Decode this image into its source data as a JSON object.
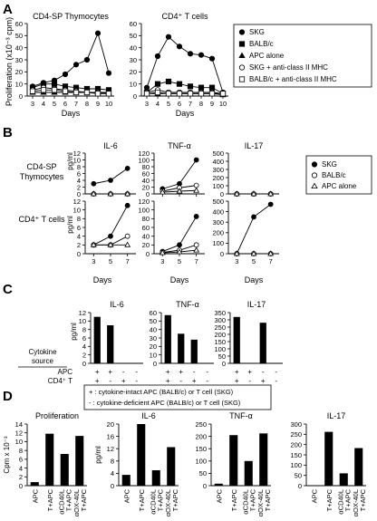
{
  "panels": {
    "A": {
      "label": "A",
      "ylabel": "Proliferation (x10⁻³ cpm)",
      "xlabel": "Days",
      "legend": [
        "SKG",
        "BALB/c",
        "APC alone",
        "SKG + anti-class II MHC",
        "BALB/c + anti-class II MHC"
      ]
    },
    "B": {
      "label": "B",
      "row_labels": [
        [
          "CD4-SP",
          "Thymocytes"
        ],
        [
          "CD4⁺ T cells"
        ]
      ],
      "ylabel": "pg/ml",
      "xlabel": "Days",
      "legend": [
        "SKG",
        "BALB/c",
        "APC alone"
      ]
    },
    "C": {
      "label": "C",
      "ylabel": "pg/ml",
      "source_label": [
        "Cytokine",
        "source"
      ],
      "row_apc": "APC",
      "row_t": "CD4⁺ T",
      "rows": {
        "apc": [
          "+",
          "+",
          "-",
          "-"
        ],
        "t": [
          "+",
          "-",
          "+",
          "-"
        ]
      },
      "footnote": [
        "+ : cytokine-intact APC (BALB/c) or T cell (SKG)",
        "- : cytokine-deficient APC (BALB/c) or T cell (SKG)"
      ]
    },
    "D": {
      "label": "D"
    }
  },
  "chart_data": [
    {
      "id": "A1",
      "type": "line",
      "panel": "A",
      "title": "CD4-SP Thymocytes",
      "xlabel": "Days",
      "ylabel": "Proliferation (x10⁻³ cpm)",
      "x": [
        3,
        4,
        5,
        6,
        7,
        8,
        9,
        10
      ],
      "xlim": [
        2.5,
        10.5
      ],
      "ylim": [
        0,
        60
      ],
      "yticks": [
        0,
        10,
        20,
        30,
        40,
        50,
        60
      ],
      "series": [
        {
          "name": "SKG",
          "marker": "filled-circle",
          "values": [
            8,
            11,
            13,
            18,
            26,
            30,
            52,
            19
          ]
        },
        {
          "name": "BALB/c",
          "marker": "filled-square",
          "values": [
            7,
            10,
            10,
            8,
            7,
            6,
            6,
            5
          ]
        },
        {
          "name": "APC alone",
          "marker": "filled-triangle",
          "values": [
            3,
            3,
            3,
            3,
            3,
            3,
            3,
            3
          ]
        },
        {
          "name": "SKG + anti-class II MHC",
          "marker": "open-circle",
          "values": [
            5,
            7,
            6,
            5,
            4,
            3,
            3,
            2
          ]
        },
        {
          "name": "BALB/c + anti-class II MHC",
          "marker": "open-square",
          "values": [
            4,
            5,
            5,
            4,
            3,
            3,
            2,
            2
          ]
        }
      ]
    },
    {
      "id": "A2",
      "type": "line",
      "panel": "A",
      "title": "CD4⁺ T cells",
      "xlabel": "Days",
      "x": [
        3,
        4,
        5,
        6,
        7,
        8,
        9,
        10
      ],
      "xlim": [
        2.5,
        10.5
      ],
      "ylim": [
        0,
        60
      ],
      "yticks": [
        0,
        10,
        20,
        30,
        40,
        50,
        60
      ],
      "series": [
        {
          "name": "SKG",
          "marker": "filled-circle",
          "values": [
            7,
            33,
            49,
            41,
            35,
            34,
            31,
            3
          ]
        },
        {
          "name": "BALB/c",
          "marker": "filled-square",
          "values": [
            3,
            10,
            12,
            10,
            8,
            7,
            7,
            2
          ]
        },
        {
          "name": "APC alone",
          "marker": "filled-triangle",
          "values": [
            2,
            2,
            2,
            2,
            2,
            2,
            2,
            1
          ]
        },
        {
          "name": "SKG + anti-class II MHC",
          "marker": "open-circle",
          "values": [
            3,
            5,
            3,
            3,
            3,
            3,
            3,
            2
          ]
        },
        {
          "name": "BALB/c + anti-class II MHC",
          "marker": "open-square",
          "values": [
            2,
            3,
            2,
            2,
            2,
            2,
            2,
            2
          ]
        }
      ]
    },
    {
      "id": "B-thy-IL6",
      "type": "line",
      "panel": "B",
      "title": "IL-6",
      "x": [
        3,
        5,
        7
      ],
      "xlim": [
        2,
        8
      ],
      "ylim": [
        0,
        12
      ],
      "yticks": [
        0,
        2,
        4,
        6,
        8,
        10,
        12
      ],
      "series": [
        {
          "name": "SKG",
          "marker": "filled-circle",
          "values": [
            3,
            4,
            7.5
          ]
        },
        {
          "name": "BALB/c",
          "marker": "open-circle",
          "values": [
            0,
            0,
            0
          ]
        },
        {
          "name": "APC alone",
          "marker": "open-triangle",
          "values": [
            0,
            0,
            0
          ]
        }
      ]
    },
    {
      "id": "B-thy-TNF",
      "type": "line",
      "panel": "B",
      "title": "TNF-α",
      "x": [
        3,
        5,
        7
      ],
      "xlim": [
        2,
        8
      ],
      "ylim": [
        0,
        120
      ],
      "yticks": [
        0,
        20,
        40,
        60,
        80,
        100,
        120
      ],
      "series": [
        {
          "name": "SKG",
          "marker": "filled-circle",
          "values": [
            15,
            30,
            100
          ]
        },
        {
          "name": "BALB/c",
          "marker": "open-circle",
          "values": [
            8,
            18,
            25
          ]
        },
        {
          "name": "APC alone",
          "marker": "open-triangle",
          "values": [
            5,
            8,
            10
          ]
        }
      ]
    },
    {
      "id": "B-thy-IL17",
      "type": "line",
      "panel": "B",
      "title": "IL-17",
      "x": [
        3,
        5,
        7
      ],
      "xlim": [
        2,
        8
      ],
      "ylim": [
        0,
        500
      ],
      "yticks": [
        0,
        100,
        200,
        300,
        400,
        500
      ],
      "series": [
        {
          "name": "SKG",
          "marker": "filled-circle",
          "values": [
            0,
            0,
            0
          ]
        },
        {
          "name": "BALB/c",
          "marker": "open-circle",
          "values": [
            0,
            0,
            0
          ]
        },
        {
          "name": "APC alone",
          "marker": "open-triangle",
          "values": [
            0,
            0,
            0
          ]
        }
      ]
    },
    {
      "id": "B-cd4-IL6",
      "type": "line",
      "panel": "B",
      "xlabel": "Days",
      "x": [
        3,
        5,
        7
      ],
      "xlim": [
        2,
        8
      ],
      "ylim": [
        0,
        12
      ],
      "yticks": [
        0,
        2,
        4,
        6,
        8,
        10,
        12
      ],
      "series": [
        {
          "name": "SKG",
          "marker": "filled-circle",
          "values": [
            2,
            4,
            11
          ]
        },
        {
          "name": "BALB/c",
          "marker": "open-circle",
          "values": [
            2,
            2,
            4
          ]
        },
        {
          "name": "APC alone",
          "marker": "open-triangle",
          "values": [
            2,
            2,
            2
          ]
        }
      ]
    },
    {
      "id": "B-cd4-TNF",
      "type": "line",
      "panel": "B",
      "xlabel": "Days",
      "x": [
        3,
        5,
        7
      ],
      "xlim": [
        2,
        8
      ],
      "ylim": [
        0,
        120
      ],
      "yticks": [
        0,
        20,
        40,
        60,
        80,
        100,
        120
      ],
      "series": [
        {
          "name": "SKG",
          "marker": "filled-circle",
          "values": [
            5,
            20,
            85
          ]
        },
        {
          "name": "BALB/c",
          "marker": "open-circle",
          "values": [
            3,
            8,
            20
          ]
        },
        {
          "name": "APC alone",
          "marker": "open-triangle",
          "values": [
            2,
            4,
            8
          ]
        }
      ]
    },
    {
      "id": "B-cd4-IL17",
      "type": "line",
      "panel": "B",
      "xlabel": "Days",
      "x": [
        3,
        5,
        7
      ],
      "xlim": [
        2,
        8
      ],
      "ylim": [
        0,
        500
      ],
      "yticks": [
        0,
        100,
        200,
        300,
        400,
        500
      ],
      "series": [
        {
          "name": "SKG",
          "marker": "filled-circle",
          "values": [
            0,
            350,
            470
          ]
        },
        {
          "name": "BALB/c",
          "marker": "open-circle",
          "values": [
            0,
            0,
            0
          ]
        },
        {
          "name": "APC alone",
          "marker": "open-triangle",
          "values": [
            0,
            0,
            0
          ]
        }
      ]
    },
    {
      "id": "C-IL6",
      "type": "bar",
      "panel": "C",
      "title": "IL-6",
      "categories": [
        "1",
        "2",
        "3",
        "4"
      ],
      "values": [
        11,
        9,
        0,
        0
      ],
      "ylim": [
        0,
        12
      ],
      "yticks": [
        0,
        2,
        4,
        6,
        8,
        10,
        12
      ]
    },
    {
      "id": "C-TNF",
      "type": "bar",
      "panel": "C",
      "title": "TNF-α",
      "categories": [
        "1",
        "2",
        "3",
        "4"
      ],
      "values": [
        57,
        35,
        28,
        0
      ],
      "ylim": [
        0,
        60
      ],
      "yticks": [
        0,
        10,
        20,
        30,
        40,
        50,
        60
      ]
    },
    {
      "id": "C-IL17",
      "type": "bar",
      "panel": "C",
      "title": "IL-17",
      "categories": [
        "1",
        "2",
        "3",
        "4"
      ],
      "values": [
        320,
        0,
        280,
        0
      ],
      "ylim": [
        0,
        350
      ],
      "yticks": [
        0,
        50,
        100,
        150,
        200,
        250,
        300,
        350
      ]
    },
    {
      "id": "D-prolif",
      "type": "bar",
      "panel": "D",
      "title": "Proliferation",
      "ylabel": "Cpm x 10⁻³",
      "categories": [
        "APC",
        "T+APC",
        "T+APC αCD40L",
        "T+APC αOX-40L"
      ],
      "values": [
        0.8,
        11.8,
        7.2,
        11.3
      ],
      "ylim": [
        0,
        14
      ],
      "yticks": [
        0,
        2,
        4,
        6,
        8,
        10,
        12,
        14
      ]
    },
    {
      "id": "D-IL6",
      "type": "bar",
      "panel": "D",
      "title": "IL-6",
      "ylabel": "pg/ml",
      "categories": [
        "APC",
        "T+APC",
        "T+APC αCD40L",
        "T+APC αOX-40L"
      ],
      "values": [
        3.5,
        20,
        5,
        12.5
      ],
      "ylim": [
        0,
        20
      ],
      "yticks": [
        0,
        4,
        8,
        12,
        16,
        20
      ]
    },
    {
      "id": "D-TNF",
      "type": "bar",
      "panel": "D",
      "title": "TNF-α",
      "categories": [
        "APC",
        "T+APC",
        "T+APC αCD40L",
        "T+APC αOX-40L"
      ],
      "values": [
        8,
        205,
        100,
        212
      ],
      "ylim": [
        0,
        250
      ],
      "yticks": [
        0,
        50,
        100,
        150,
        200,
        250
      ]
    },
    {
      "id": "D-IL17",
      "type": "bar",
      "panel": "D",
      "title": "IL-17",
      "categories": [
        "APC",
        "T+APC",
        "T+APC αCD40L",
        "T+APC αOX-40L"
      ],
      "values": [
        0,
        262,
        60,
        183
      ],
      "ylim": [
        0,
        300
      ],
      "yticks": [
        0,
        50,
        100,
        150,
        200,
        250,
        300
      ]
    }
  ]
}
